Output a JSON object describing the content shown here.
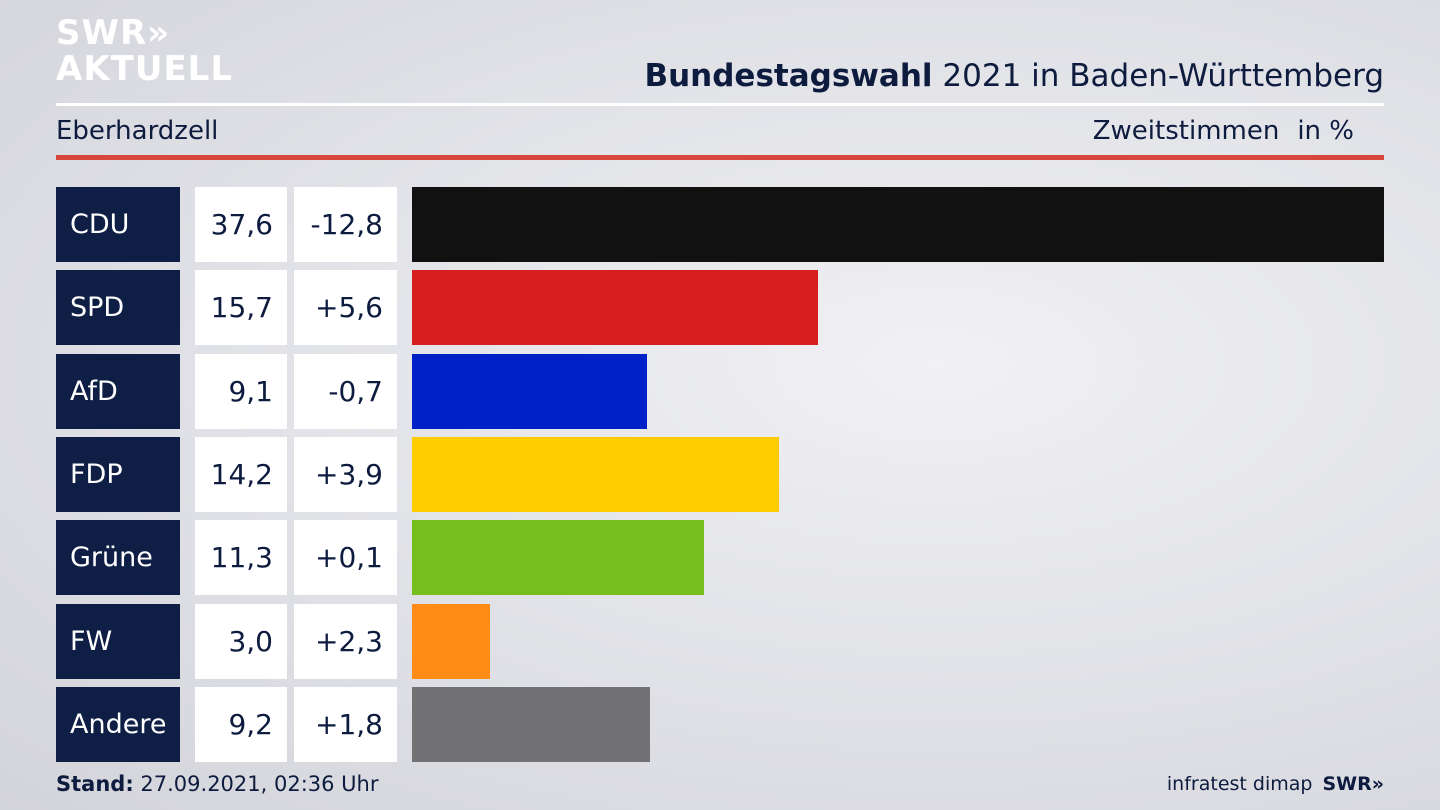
{
  "brand": {
    "logo_line1": "SWR»",
    "logo_line2": "AKTUELL",
    "footer_source": "infratest dimap",
    "footer_logo": "SWR»"
  },
  "header": {
    "title_bold": "Bundestagswahl",
    "title_rest": " 2021 in Baden-Württemberg",
    "region": "Eberhardzell",
    "measure": "Zweitstimmen",
    "unit": "in %"
  },
  "footer": {
    "stand_label": "Stand:",
    "stand_value": " 27.09.2021, 02:36 Uhr"
  },
  "colors": {
    "party_box": "#0e1e44",
    "rule_red": "#d8463d"
  },
  "chart_data": {
    "type": "bar",
    "orientation": "horizontal",
    "categories": [
      "CDU",
      "SPD",
      "AfD",
      "FDP",
      "Grüne",
      "FW",
      "Andere"
    ],
    "values": [
      37.6,
      15.7,
      9.1,
      14.2,
      11.3,
      3.0,
      9.2
    ],
    "value_labels": [
      "37,6",
      "15,7",
      "9,1",
      "14,2",
      "11,3",
      "3,0",
      "9,2"
    ],
    "diff_labels": [
      "-12,8",
      "+5,6",
      "-0,7",
      "+3,9",
      "+0,1",
      "+2,3",
      "+1,8"
    ],
    "colors": [
      "#111111",
      "#d81e1e",
      "#0021c8",
      "#ffcc00",
      "#76be1c",
      "#ff8c16",
      "#727275"
    ],
    "xlim": [
      0,
      37.6
    ],
    "grid": false,
    "legend": "none"
  }
}
